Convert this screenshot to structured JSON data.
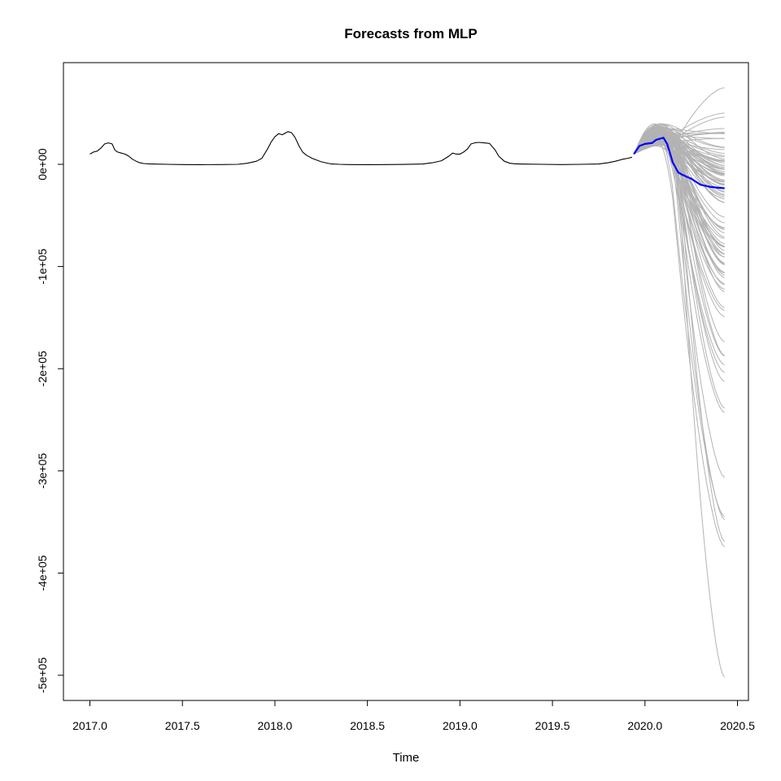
{
  "chart_data": {
    "type": "line",
    "title": "Forecasts from MLP",
    "xlabel": "Time",
    "ylabel": "",
    "xlim": [
      2016.93,
      2020.56
    ],
    "ylim": [
      -525000,
      50000
    ],
    "x_ticks": [
      {
        "value": 2017.0,
        "label": "2017.0"
      },
      {
        "value": 2017.5,
        "label": "2017.5"
      },
      {
        "value": 2018.0,
        "label": "2018.0"
      },
      {
        "value": 2018.5,
        "label": "2018.5"
      },
      {
        "value": 2019.0,
        "label": "2019.0"
      },
      {
        "value": 2019.5,
        "label": "2019.5"
      },
      {
        "value": 2020.0,
        "label": "2020.0"
      },
      {
        "value": 2020.5,
        "label": "2020.5"
      }
    ],
    "y_ticks": [
      {
        "value": 0,
        "label": "0e+00"
      },
      {
        "value": -100000,
        "label": "-1e+05"
      },
      {
        "value": -200000,
        "label": "-2e+05"
      },
      {
        "value": -300000,
        "label": "-3e+05"
      },
      {
        "value": -400000,
        "label": "-4e+05"
      },
      {
        "value": -500000,
        "label": "-5e+05"
      }
    ],
    "grid": false,
    "colors": {
      "historical": "#000000",
      "mean_forecast": "#0000ff",
      "simulated_paths": "#b3b3b3"
    },
    "series": [
      {
        "role": "historical",
        "x": [
          2017.0,
          2017.02,
          2017.04,
          2017.06,
          2017.08,
          2017.1,
          2017.12,
          2017.135,
          2017.15,
          2017.17,
          2017.19,
          2017.21,
          2017.23,
          2017.25,
          2017.27,
          2017.29,
          2017.32,
          2017.36,
          2017.42,
          2017.5,
          2017.6,
          2017.7,
          2017.8,
          2017.85,
          2017.9,
          2017.93,
          2017.96,
          2017.98,
          2018.0,
          2018.02,
          2018.04,
          2018.06,
          2018.07,
          2018.09,
          2018.11,
          2018.13,
          2018.15,
          2018.17,
          2018.2,
          2018.25,
          2018.3,
          2018.35,
          2018.4,
          2018.5,
          2018.6,
          2018.7,
          2018.8,
          2018.85,
          2018.9,
          2018.94,
          2018.96,
          2018.98,
          2019.0,
          2019.02,
          2019.04,
          2019.06,
          2019.08,
          2019.1,
          2019.13,
          2019.16,
          2019.19,
          2019.21,
          2019.24,
          2019.27,
          2019.3,
          2019.35,
          2019.45,
          2019.55,
          2019.65,
          2019.75,
          2019.8,
          2019.84,
          2019.88,
          2019.91,
          2019.93
        ],
        "y": [
          10000,
          12000,
          13000,
          16000,
          20000,
          21000,
          20000,
          14000,
          12000,
          11000,
          10000,
          8000,
          5000,
          3000,
          1500,
          800,
          500,
          200,
          0,
          -200,
          -300,
          -200,
          0,
          1000,
          3000,
          6000,
          15000,
          22000,
          27000,
          30000,
          29000,
          31000,
          32000,
          31000,
          26000,
          18000,
          12000,
          9000,
          6000,
          2500,
          500,
          0,
          -200,
          -300,
          -200,
          -100,
          300,
          1500,
          3500,
          8000,
          11000,
          10000,
          10000,
          12000,
          15000,
          20000,
          21000,
          21500,
          21000,
          20500,
          14000,
          8000,
          3000,
          1000,
          500,
          200,
          0,
          -200,
          0,
          300,
          1500,
          3000,
          5000,
          6000,
          7000
        ]
      },
      {
        "role": "mean_forecast",
        "x": [
          2019.94,
          2019.97,
          2020.0,
          2020.04,
          2020.06,
          2020.08,
          2020.1,
          2020.12,
          2020.15,
          2020.18,
          2020.2,
          2020.25,
          2020.3,
          2020.35,
          2020.4,
          2020.43
        ],
        "y": [
          10000,
          18000,
          20000,
          21000,
          24000,
          25000,
          26000,
          20000,
          2000,
          -8000,
          -10000,
          -14000,
          -20000,
          -22000,
          -23000,
          -23500
        ]
      }
    ],
    "simulated_paths": {
      "count": 100,
      "x_start": 2019.94,
      "x_end": 2020.43,
      "y_start": 10000,
      "max_end_value": 75000,
      "min_end_value": -502000
    }
  }
}
